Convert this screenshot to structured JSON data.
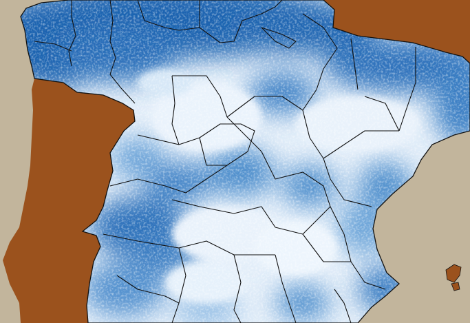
{
  "map": {
    "colors": {
      "sea": "#c2b59c",
      "neighbor_land": "#9b521d",
      "field_dark": "#1f64b0",
      "field_mid": "#5d9bd6",
      "field_light": "#e6f1fb",
      "province_border": "#111111"
    },
    "layers": [
      "sea",
      "neighbor-land",
      "precipitation-field",
      "province-borders"
    ],
    "legend": null
  }
}
